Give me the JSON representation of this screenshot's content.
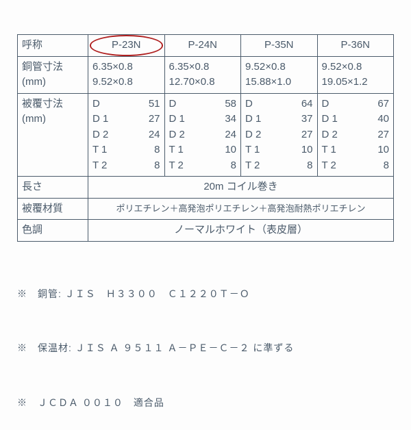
{
  "colors": {
    "text": "#4a5a6a",
    "border": "#4a5a6a",
    "highlight": "#b02020",
    "background": "#fdfdfd"
  },
  "table": {
    "row1": {
      "label": "呼称",
      "c1": "P-23N",
      "c2": "P-24N",
      "c3": "P-35N",
      "c4": "P-36N",
      "highlighted_col": 1
    },
    "row2": {
      "label": "銅管寸法\n(mm)",
      "c1a": "6.35×0.8",
      "c1b": "9.52×0.8",
      "c2a": "6.35×0.8",
      "c2b": "12.70×0.8",
      "c3a": "9.52×0.8",
      "c3b": "15.88×1.0",
      "c4a": "9.52×0.8",
      "c4b": "19.05×1.2"
    },
    "row3": {
      "label": "被覆寸法\n(mm)",
      "keys": [
        "D",
        "D 1",
        "D 2",
        "T 1",
        "T 2"
      ],
      "c1": [
        "51",
        "27",
        "24",
        "8",
        "8"
      ],
      "c2": [
        "58",
        "34",
        "24",
        "10",
        "8"
      ],
      "c3": [
        "64",
        "37",
        "27",
        "10",
        "8"
      ],
      "c4": [
        "67",
        "40",
        "27",
        "10",
        "8"
      ]
    },
    "row4": {
      "label": "長さ",
      "value": "20m コイル巻き"
    },
    "row5": {
      "label": "被覆材質",
      "value": "ポリエチレン＋高発泡ポリエチレン＋高発泡耐熱ポリエチレン"
    },
    "row6": {
      "label": "色調",
      "value": "ノーマルホワイト（表皮層）"
    }
  },
  "notes": {
    "n1": "※　銅管: ＪＩＳ　Ｈ３３００　Ｃ１２２０Ｔ－Ｏ",
    "n2": "※　保温材: ＪＩＳ Ａ ９５１１ Ａ－ＰＥ－Ｃ－２ に準ずる",
    "n3": "※　ＪＣＤＡ ００１０　適合品"
  }
}
